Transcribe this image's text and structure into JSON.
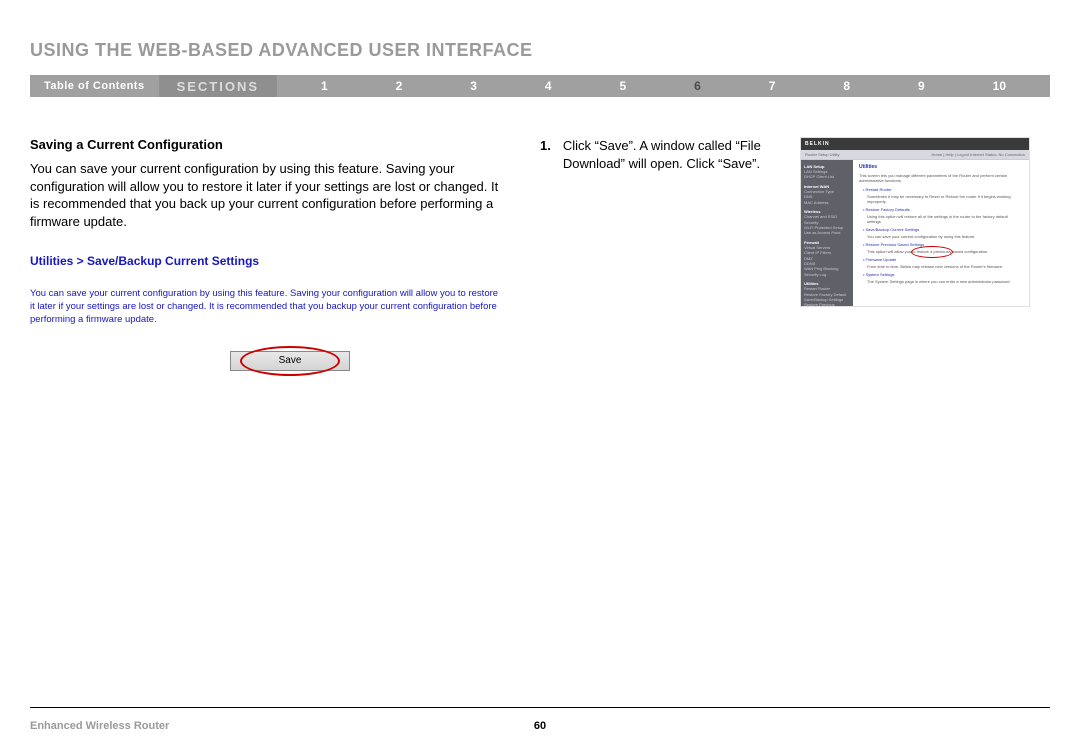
{
  "page_title": "USING THE WEB-BASED ADVANCED USER INTERFACE",
  "nav": {
    "toc": "Table of Contents",
    "sections_label": "SECTIONS",
    "items": [
      "1",
      "2",
      "3",
      "4",
      "5",
      "6",
      "7",
      "8",
      "9",
      "10"
    ],
    "active_index": 5
  },
  "left": {
    "subheading": "Saving a Current Configuration",
    "body": "You can save your current configuration by using this feature. Saving your configuration will allow you to restore it later if your settings are lost or changed. It is recommended that you back up your current configuration before performing a firmware update.",
    "util_heading": "Utilities > Save/Backup Current Settings",
    "util_desc": "You can save your current configuration by using this feature. Saving your configuration will allow you to restore it later if your settings are lost or changed. It is recommended that you backup your current configuration before performing a firmware update.",
    "save_label": "Save"
  },
  "mid": {
    "step_num": "1.",
    "step_text": "Click “Save”. A window called “File Download” will open. Click “Save”."
  },
  "thumb": {
    "logo": "BELKIN",
    "title": "Router Setup Utility",
    "toplinks": "Home | Help | Logout   Internet Status: No Connection",
    "sidebar": [
      {
        "head": "LAN Setup",
        "items": [
          "LAN Settings",
          "DHCP Client List"
        ]
      },
      {
        "head": "Internet WAN",
        "items": [
          "Connection Type",
          "DNS",
          "MAC Address"
        ]
      },
      {
        "head": "Wireless",
        "items": [
          "Channel and SSID",
          "Security",
          "Wi-Fi Protected Setup",
          "Use as Access Point"
        ]
      },
      {
        "head": "Firewall",
        "items": [
          "Virtual Servers",
          "Client IP Filters",
          "DMZ",
          "DDNS",
          "WAN Ping Blocking",
          "Security Log"
        ]
      },
      {
        "head": "Utilities",
        "items": [
          "Restart Router",
          "Restore Factory Default",
          "Save/Backup Settings",
          "Restore Previous Settings",
          "Firmware Update",
          "System Settings"
        ]
      }
    ],
    "main_title": "Utilities",
    "main_para": "This screen lets you manage different parameters of the Router and perform certain administrative functions.",
    "bullets": [
      {
        "b": "Restart Router",
        "s": "Sometimes it may be necessary to Reset or Reboot the router if it begins working improperly."
      },
      {
        "b": "Restore Factory Defaults",
        "s": "Using this option will restore all of the settings in the router to the factory default settings."
      },
      {
        "b": "Save/Backup Current Settings",
        "s": "You can save your current configuration by using this feature."
      },
      {
        "b": "Restore Previous Saved Settings",
        "s": "This option will allow you to restore a previously saved configuration."
      },
      {
        "b": "Firmware Update",
        "s": "From time to time, Belkin may release new versions of the Router's firmware."
      },
      {
        "b": "System Settings",
        "s": "The System Settings page is where you can enter a new administrator password."
      }
    ]
  },
  "footer": {
    "left": "Enhanced Wireless Router",
    "page": "60"
  },
  "colors": {
    "title_gray": "#9a9a9a",
    "nav_bg": "#a0a0a0",
    "blue_text": "#1616c4",
    "circle_red": "#cc0000",
    "sidebar_bg": "#606068"
  }
}
